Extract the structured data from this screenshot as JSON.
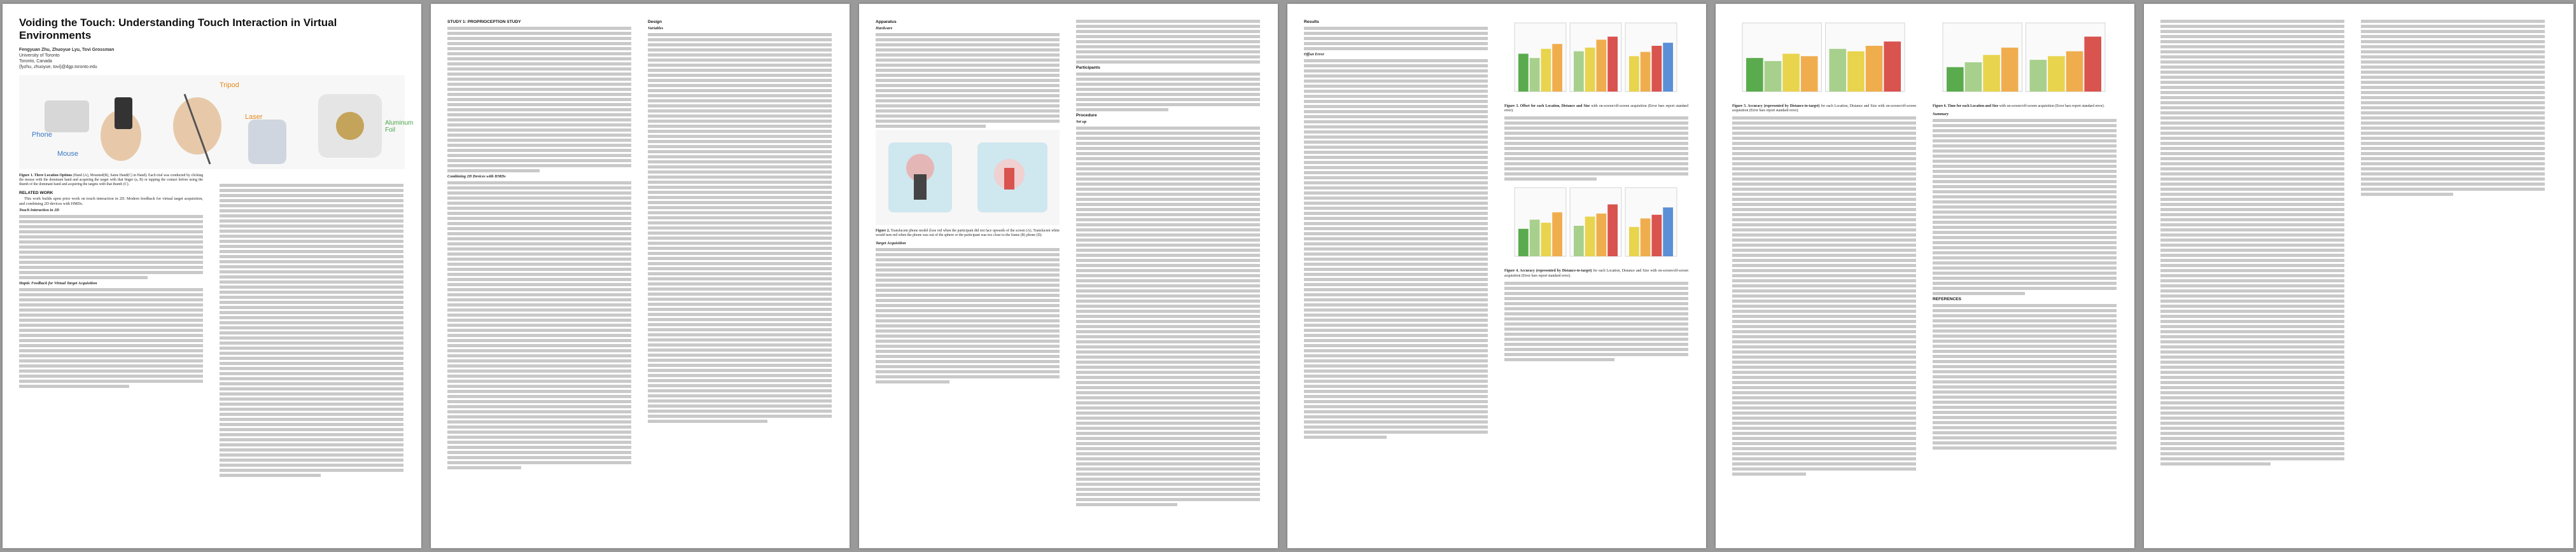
{
  "title": "Voiding the Touch: Understanding Touch Interaction in Virtual Environments",
  "authors": "Fengyuan Zhu, Zhuoyue Lyu, Tovi Grossman",
  "affiliation": "University of Toronto",
  "location": "Toronto, Canada",
  "emails": "{fyzhu, zhuoyue, tovi}@dgp.toronto.edu",
  "hero_labels": {
    "phone": "Phone",
    "mouse": "Mouse",
    "tripod": "Tripod",
    "laser": "Laser",
    "aluminum_foil": "Aluminum Foil"
  },
  "fig1_caption_bold": "Figure 1. Three Location Options",
  "fig1_caption": "(Hand (A), Mounted(B), Same Hand(C) in Hand). Each trial was conducted by clicking the mouse with the dominant hand and acquiring the target with that finger (a, B) or tapping the contact before using the thumb of the dominant hand and acquiring the targets with that thumb (C).",
  "sec_related": "RELATED WORK",
  "related_intro": "This work builds upon prior work on touch interaction in 2D. Modern feedback for virtual target acquisition, and combining 2D devices with HMDs.",
  "sub_touch": "Touch Interaction in 2D",
  "sub_haptic": "Haptic Feedback for Virtual Target Acquisition",
  "sec_study": "STUDY 1: PROPRIOCEPTION STUDY",
  "sub_combining": "Combining 2D Devices with HMDs",
  "sec_design": "Design",
  "sub_variables": "Variables",
  "sec_apparatus": "Apparatus",
  "sub_hardware": "Hardware",
  "sec_participants": "Participants",
  "sec_procedure": "Procedure",
  "sub_setup": "Set up",
  "sub_target": "Target Acquisition",
  "sub_summary": "Summary",
  "sec_results": "Results",
  "sub_offset": "Offset Error",
  "sec_references": "REFERENCES",
  "fig2_caption_bold": "Figure 2.",
  "fig2_caption": "Translucent phone model (lose red when the participant did not face upwards of the screen (A). Translucent white would turn red when the phone was out of the sphere or the participant was too close to the frame (B) phone (D).",
  "fig3_caption_bold": "Figure 3. Offset for each Location, Distance and Size",
  "fig3_caption": "with on-screen/off-screen acquisition (Error bars report standard error).",
  "fig4_caption_bold": "Figure 4. Accuracy (represented by Distance-to-target)",
  "fig4_caption": "for each Location, Distance and Size with on-screen/off-screen acquisition (Error bars report standard error).",
  "fig5_caption_bold": "Figure 5. Accuracy (represented by Distance-to-target)",
  "fig5_caption": "for each Location, Distance and Size with on-screen/off-screen acquisition (Error bars report standard error).",
  "fig6_caption_bold": "Figure 6. Time for each Location and Size",
  "fig6_caption": "with on-screen/off-screen acquisition (Error bars report standard error).",
  "charts": {
    "fig3": {
      "bars": [
        0.62,
        0.55,
        0.7,
        0.78,
        0.66,
        0.72,
        0.85,
        0.9,
        0.58,
        0.65,
        0.75,
        0.8
      ]
    },
    "fig4": {
      "bars": [
        0.45,
        0.6,
        0.55,
        0.72,
        0.5,
        0.65,
        0.7,
        0.85,
        0.48,
        0.62,
        0.68,
        0.8
      ]
    },
    "fig5": {
      "bars": [
        0.55,
        0.5,
        0.62,
        0.58,
        0.7,
        0.66,
        0.75,
        0.82
      ]
    },
    "fig6": {
      "bars": [
        0.4,
        0.48,
        0.6,
        0.72,
        0.52,
        0.58,
        0.66,
        0.9
      ]
    }
  },
  "colors": {
    "green": "#5aab4d",
    "light_green": "#a8d08d",
    "red": "#d9534f",
    "orange": "#f0ad4e",
    "yellow": "#e8d44d",
    "blue": "#5b8fd6"
  }
}
